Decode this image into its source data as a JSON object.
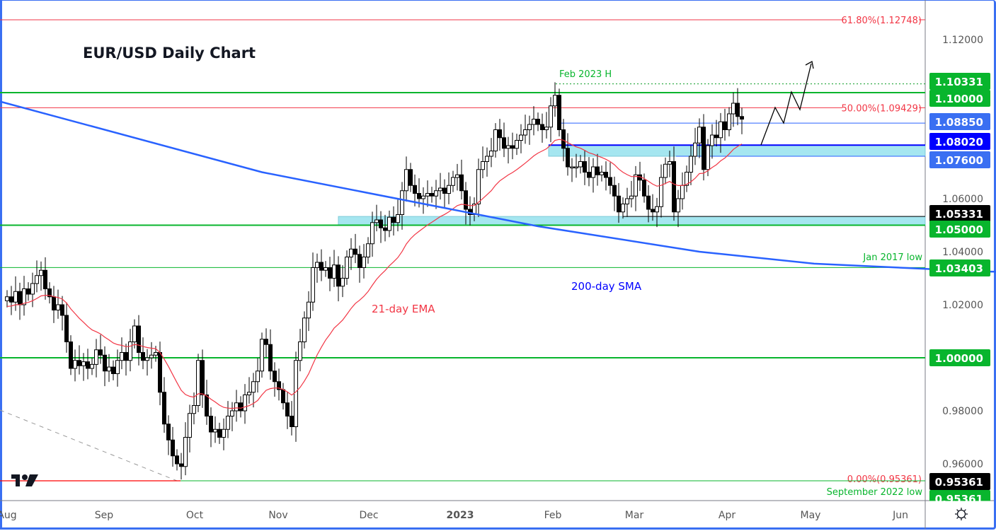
{
  "title": "EUR/USD Daily Chart",
  "chart_data": {
    "type": "candlestick",
    "title": "EUR/USD Daily Chart",
    "ylim": [
      0.946,
      1.135
    ],
    "grid": false,
    "x_tick_labels": [
      "Aug",
      "Sep",
      "Oct",
      "Nov",
      "Dec",
      "2023",
      "Feb",
      "Mar",
      "Apr",
      "May",
      "Jun"
    ],
    "y_tick_labels": [
      "1.12000",
      "1.06000",
      "1.04000",
      "1.02000",
      "0.98000",
      "0.96000"
    ],
    "y_tick_values": [
      1.12,
      1.06,
      1.04,
      1.02,
      0.98,
      0.96
    ],
    "first_open": 1.0215,
    "closes": [
      1.023,
      1.021,
      1.025,
      1.02,
      1.026,
      1.024,
      1.028,
      1.031,
      1.033,
      1.026,
      1.023,
      1.018,
      1.02,
      1.016,
      1.006,
      0.996,
      0.999,
      0.997,
      0.9985,
      0.996,
      0.9975,
      1.003,
      1.001,
      0.995,
      0.9965,
      0.994,
      0.999,
      1.002,
      0.999,
      1.006,
      1.012,
      1.002,
      0.999,
      1.0,
      1.001,
      1.002,
      0.987,
      0.975,
      0.969,
      0.963,
      0.96,
      0.959,
      0.97,
      0.979,
      0.982,
      0.999,
      0.986,
      0.978,
      0.972,
      0.973,
      0.97,
      0.973,
      0.978,
      0.98,
      0.983,
      0.98,
      0.986,
      0.987,
      0.991,
      0.995,
      1.007,
      1.005,
      0.995,
      0.991,
      0.988,
      0.983,
      0.978,
      0.974,
      0.999,
      1.006,
      1.015,
      1.021,
      1.034,
      1.036,
      1.033,
      1.034,
      1.03,
      1.035,
      1.027,
      1.03,
      1.038,
      1.041,
      1.039,
      1.034,
      1.038,
      1.043,
      1.051,
      1.052,
      1.049,
      1.048,
      1.053,
      1.051,
      1.054,
      1.063,
      1.071,
      1.065,
      1.062,
      1.06,
      1.061,
      1.062,
      1.061,
      1.063,
      1.064,
      1.062,
      1.065,
      1.068,
      1.069,
      1.063,
      1.056,
      1.054,
      1.058,
      1.071,
      1.074,
      1.076,
      1.078,
      1.086,
      1.083,
      1.079,
      1.08,
      1.079,
      1.082,
      1.084,
      1.086,
      1.088,
      1.09,
      1.088,
      1.086,
      1.087,
      1.095,
      1.099,
      1.086,
      1.079,
      1.072,
      1.072,
      1.072,
      1.074,
      1.07,
      1.068,
      1.072,
      1.069,
      1.07,
      1.068,
      1.065,
      1.061,
      1.055,
      1.058,
      1.06,
      1.061,
      1.069,
      1.067,
      1.061,
      1.056,
      1.055,
      1.057,
      1.068,
      1.073,
      1.074,
      1.055,
      1.06,
      1.065,
      1.07,
      1.076,
      1.081,
      1.087,
      1.071,
      1.08,
      1.084,
      1.083,
      1.089,
      1.086,
      1.092,
      1.096,
      1.091,
      1.09
    ],
    "sma200": {
      "label": "200-day SMA",
      "color": "#2962ff",
      "points": [
        [
          -2,
          1.0968
        ],
        [
          60,
          1.07
        ],
        [
          125,
          1.0496
        ],
        [
          163,
          1.04
        ],
        [
          190,
          1.0355
        ],
        [
          230,
          1.0325
        ],
        [
          290,
          1.0318
        ],
        [
          330,
          1.032
        ],
        [
          370,
          1.0332
        ],
        [
          400,
          1.033
        ],
        [
          430,
          1.0335
        ]
      ]
    },
    "ema21": {
      "label": "21-day EMA",
      "color": "#f23645"
    },
    "levels": [
      {
        "value": 1.10331,
        "label": "1.10331",
        "color": "#089a23",
        "style": "dotted",
        "annotation": "Feb 2023 H"
      },
      {
        "value": 1.1,
        "label": "1.10000",
        "color": "#08b52d",
        "style": "thick"
      },
      {
        "value": 1.0885,
        "label": "1.08850",
        "color": "#2962ff",
        "style": "thin"
      },
      {
        "value": 1.0802,
        "label": "1.08020",
        "color": "#0000ff",
        "style": "thick"
      },
      {
        "value": 1.076,
        "label": "1.07600",
        "color": "#2962ff",
        "style": "thin"
      },
      {
        "value": 1.05331,
        "label": "1.05331",
        "color": "#000000",
        "style": "thin"
      },
      {
        "value": 1.05,
        "label": "1.05000",
        "color": "#08b52d",
        "style": "thick"
      },
      {
        "value": 1.03403,
        "label": "1.03403",
        "color": "#08b52d",
        "style": "thin",
        "annotation": "Jan 2017 low"
      },
      {
        "value": 1.0,
        "label": "1.00000",
        "color": "#08b52d",
        "style": "thick"
      },
      {
        "value": 0.95361,
        "label": "0.95361",
        "color": "#000000",
        "style": "thin"
      },
      {
        "value": 0.95361,
        "label": "0.95361",
        "color": "#08b52d",
        "style": "thin",
        "annotation": "September 2022 low"
      }
    ],
    "fibonacci": [
      {
        "label": "61.80%(1.12748)",
        "value": 1.12748
      },
      {
        "label": "50.00%(1.09429)",
        "value": 1.09429
      },
      {
        "label": "0.00%(0.95361)",
        "value": 0.95361
      }
    ],
    "zones": [
      {
        "from": 1.05,
        "to": 1.0533,
        "color": "#a5e6f0"
      },
      {
        "from": 1.076,
        "to": 1.0802,
        "color": "#a5e6f0"
      }
    ]
  },
  "annotations": {
    "feb_high": "Feb 2023 H",
    "sma": "200-day SMA",
    "ema": "21-day EMA",
    "jan2017": "Jan 2017 low",
    "sep2022": "September 2022 low"
  },
  "colors": {
    "up_body": "#ffffff",
    "down_body": "#000000",
    "accent": "#2962ff"
  },
  "icons": {
    "logo": "tradingview-logo",
    "settings": "settings-gear-icon"
  }
}
